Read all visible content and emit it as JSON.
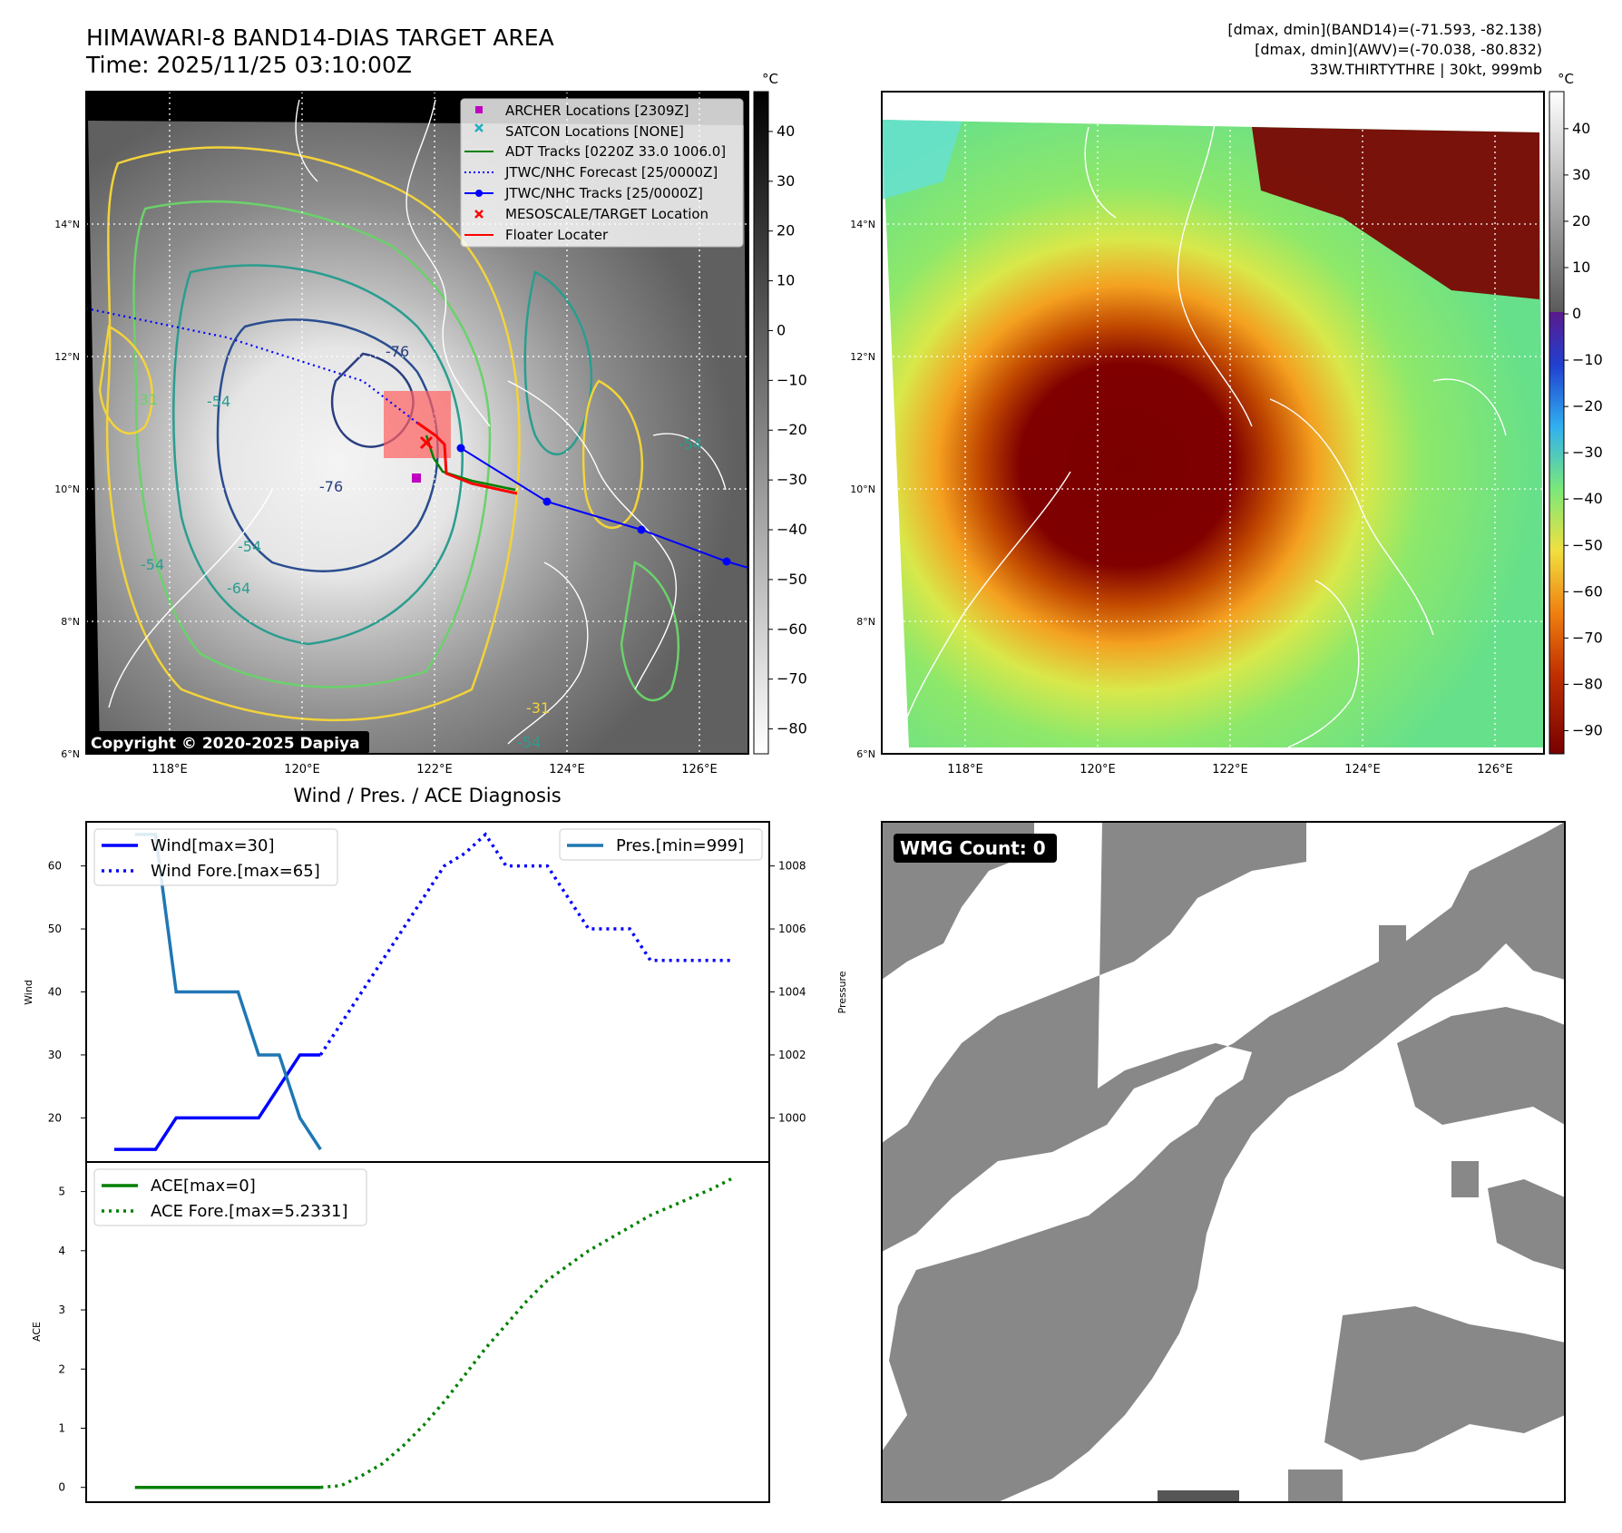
{
  "header": {
    "title": "HIMAWARI-8 BAND14-DIAS TARGET AREA",
    "time": "Time: 2025/11/25 03:10:00Z",
    "info_line1": "[dmax, dmin](BAND14)=(-71.593, -82.138)",
    "info_line2": "[dmax, dmin](AWV)=(-70.038, -80.832)",
    "info_line3": "33W.THIRTYTHRE | 30kt, 999mb"
  },
  "maps": {
    "lat_ticks": [
      "14°N",
      "12°N",
      "10°N",
      "8°N",
      "6°N"
    ],
    "lon_ticks": [
      "118°E",
      "120°E",
      "122°E",
      "124°E",
      "126°E"
    ],
    "copyright": "Copyright © 2020-2025 Dapiya",
    "contour_labels": [
      "-76",
      "-76",
      "-31",
      "-54",
      "-54",
      "-64",
      "-54",
      "-54",
      "-31",
      "-54"
    ]
  },
  "colorbar_left": {
    "unit": "°C",
    "ticks": [
      "40",
      "30",
      "20",
      "10",
      "0",
      "−10",
      "−20",
      "−30",
      "−40",
      "−50",
      "−60",
      "−70",
      "−80"
    ]
  },
  "colorbar_right": {
    "unit": "°C",
    "ticks": [
      "40",
      "30",
      "20",
      "10",
      "0",
      "−10",
      "−20",
      "−30",
      "−40",
      "−50",
      "−60",
      "−70",
      "−80",
      "−90"
    ]
  },
  "legend_map": [
    {
      "label": "ARCHER Locations [2309Z]",
      "marker": "square",
      "color": "#c000c0"
    },
    {
      "label": "SATCON Locations [NONE]",
      "marker": "x",
      "color": "#20b0c0"
    },
    {
      "label": "ADT Tracks [0220Z 33.0 1006.0]",
      "marker": "line",
      "color": "#008000"
    },
    {
      "label": "JTWC/NHC Forecast [25/0000Z]",
      "marker": "dotted",
      "color": "#0000ff"
    },
    {
      "label": "JTWC/NHC Tracks [25/0000Z]",
      "marker": "line-dot",
      "color": "#0000ff"
    },
    {
      "label": "MESOSCALE/TARGET Location",
      "marker": "x",
      "color": "#ff0000"
    },
    {
      "label": "Floater Locater",
      "marker": "line",
      "color": "#ff0000"
    }
  ],
  "diagnosis": {
    "title": "Wind / Pres. / ACE Diagnosis",
    "wind_ylabel": "Wind",
    "pres_ylabel": "Pressure",
    "ace_ylabel": "ACE",
    "legend_wind": "Wind[max=30]",
    "legend_wind_fore": "Wind Fore.[max=65]",
    "legend_pres": "Pres.[min=999]",
    "legend_ace": "ACE[max=0]",
    "legend_ace_fore": "ACE Fore.[max=5.2331]"
  },
  "wmg": {
    "label": "WMG Count: 0"
  },
  "chart_data": [
    {
      "type": "line",
      "panel": "wind-pressure",
      "x": [
        0,
        1,
        2,
        3,
        4,
        5,
        6,
        7,
        8,
        9,
        10,
        11,
        12,
        13,
        14,
        15,
        16,
        17,
        18,
        19,
        20,
        21,
        22,
        23,
        24,
        25,
        26,
        27,
        28,
        29,
        30
      ],
      "series": [
        {
          "name": "Wind[max=30]",
          "axis": "left",
          "color": "#0000ff",
          "style": "solid",
          "x": [
            0,
            1,
            2,
            3,
            4,
            5,
            6,
            7,
            8,
            9,
            10
          ],
          "values": [
            15,
            15,
            15,
            20,
            20,
            20,
            20,
            20,
            25,
            30,
            30
          ]
        },
        {
          "name": "Wind Fore.[max=65]",
          "axis": "left",
          "color": "#0000ff",
          "style": "dotted",
          "x": [
            10,
            11,
            12,
            13,
            14,
            15,
            16,
            17,
            18,
            19,
            20,
            21,
            22,
            23,
            24,
            25,
            26,
            27,
            28,
            29,
            30
          ],
          "values": [
            30,
            35,
            40,
            45,
            50,
            55,
            60,
            62,
            65,
            60,
            60,
            60,
            55,
            50,
            50,
            50,
            45,
            45,
            45,
            45,
            45
          ]
        },
        {
          "name": "Pres.[min=999]",
          "axis": "right",
          "color": "#1f77b4",
          "style": "solid",
          "x": [
            1,
            2,
            3,
            4,
            5,
            6,
            7,
            8,
            9,
            10
          ],
          "values": [
            1009,
            1009,
            1004,
            1004,
            1004,
            1004,
            1002,
            1002,
            1000,
            999
          ]
        }
      ],
      "ylim": [
        13,
        67
      ],
      "yticks": [
        20,
        30,
        40,
        50,
        60
      ],
      "ylim_right": [
        998.6,
        1009.4
      ],
      "yticks_right": [
        1000,
        1002,
        1004,
        1006,
        1008
      ]
    },
    {
      "type": "line",
      "panel": "ace",
      "series": [
        {
          "name": "ACE[max=0]",
          "color": "#008000",
          "style": "solid",
          "x": [
            1,
            2,
            3,
            4,
            5,
            6,
            7,
            8,
            9,
            10
          ],
          "values": [
            0,
            0,
            0,
            0,
            0,
            0,
            0,
            0,
            0,
            0
          ]
        },
        {
          "name": "ACE Fore.[max=5.2331]",
          "color": "#008000",
          "style": "dotted",
          "x": [
            10,
            11,
            12,
            13,
            14,
            15,
            16,
            17,
            18,
            19,
            20,
            21,
            22,
            23,
            24,
            25,
            26,
            27,
            28,
            29,
            30
          ],
          "values": [
            0,
            0.03,
            0.2,
            0.4,
            0.7,
            1.05,
            1.45,
            1.9,
            2.35,
            2.75,
            3.15,
            3.5,
            3.75,
            4.0,
            4.2,
            4.4,
            4.6,
            4.75,
            4.9,
            5.05,
            5.23
          ]
        }
      ],
      "ylim": [
        -0.25,
        5.5
      ],
      "yticks": [
        0,
        1,
        2,
        3,
        4,
        5
      ]
    }
  ]
}
